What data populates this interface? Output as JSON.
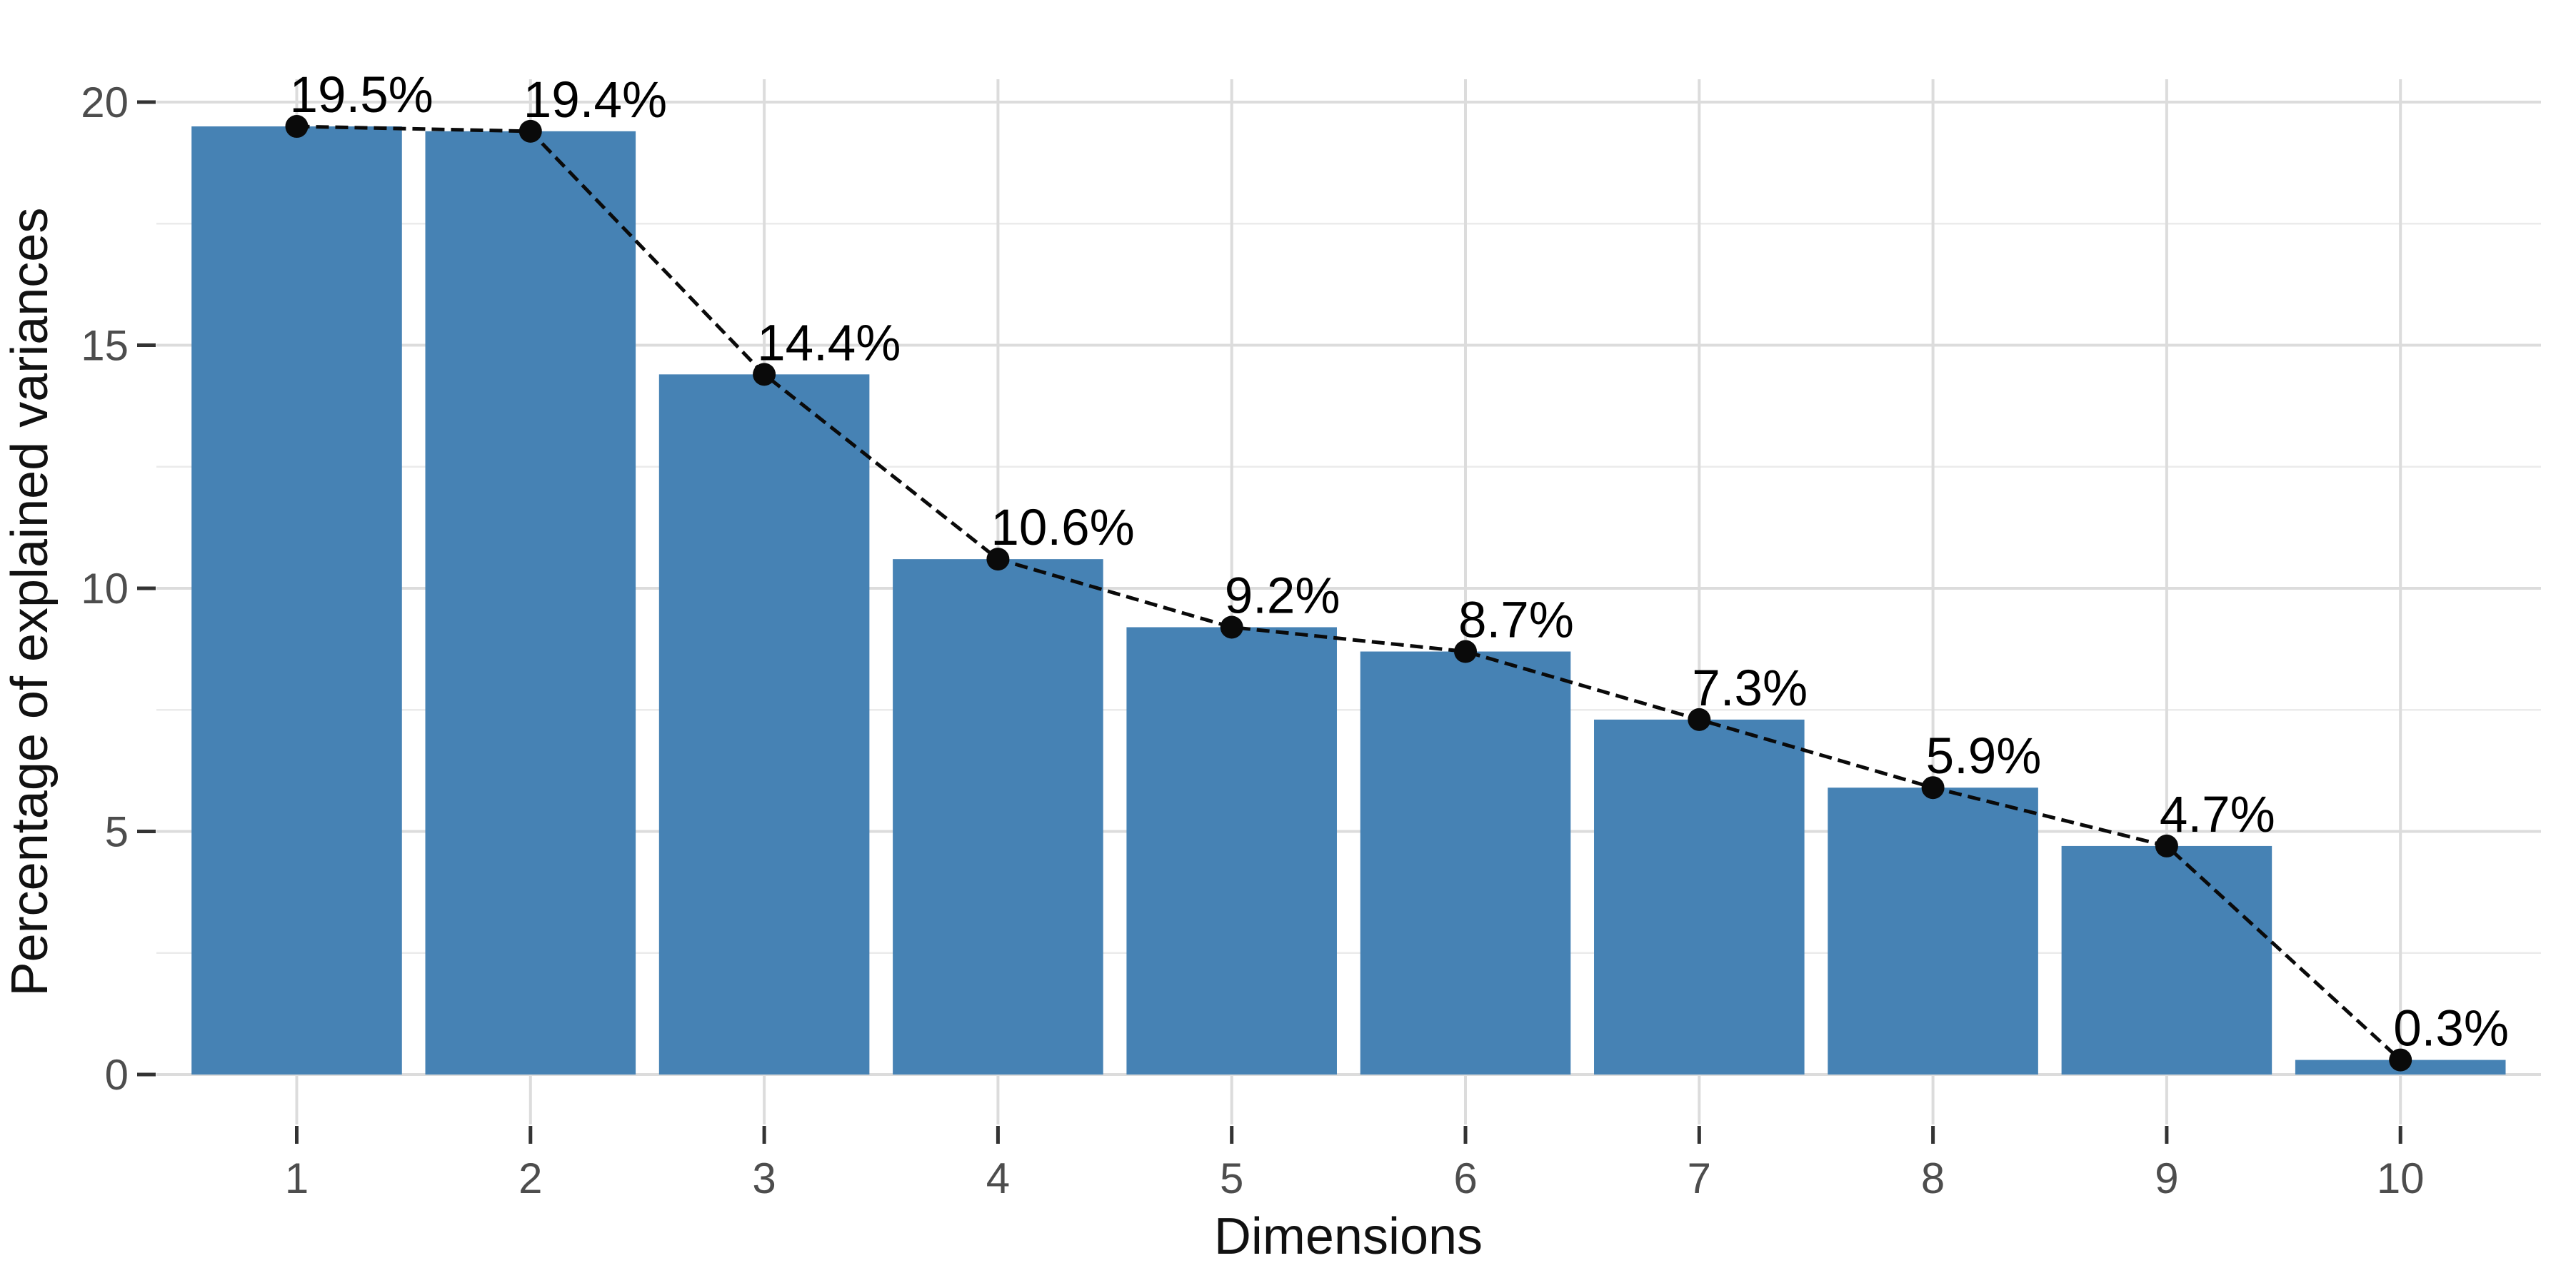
{
  "figure": {
    "background": "#FFFFFF"
  },
  "chart_data": {
    "type": "bar",
    "overlay": "line-with-points",
    "title": "",
    "xlabel": "Dimensions",
    "ylabel": "Percentage of explained variances",
    "categories": [
      "1",
      "2",
      "3",
      "4",
      "5",
      "6",
      "7",
      "8",
      "9",
      "10"
    ],
    "values": [
      19.5,
      19.4,
      14.4,
      10.6,
      9.2,
      8.7,
      7.3,
      5.9,
      4.7,
      0.3
    ],
    "point_labels": [
      "19.5%",
      "19.4%",
      "14.4%",
      "10.6%",
      "9.2%",
      "8.7%",
      "7.3%",
      "5.9%",
      "4.7%",
      "0.3%"
    ],
    "ylim": [
      0,
      20.5
    ],
    "yticks": [
      0,
      5,
      10,
      15,
      20
    ],
    "yticks_minor": [
      2.5,
      7.5,
      12.5,
      17.5
    ],
    "grid": "horizontal major+minor, vertical major at category centers",
    "legend": "none",
    "colors": {
      "bar_fill": "#4682B4",
      "line": "#0a0a0a",
      "point": "#0a0a0a",
      "data_label": "#000000",
      "axis_tick_label": "#4D4D4D",
      "axis_title": "#111111",
      "tick_mark": "#333333",
      "grid_major": "#DCDCDC",
      "grid_minor": "#EBEBEB",
      "background": "#FFFFFF"
    }
  }
}
